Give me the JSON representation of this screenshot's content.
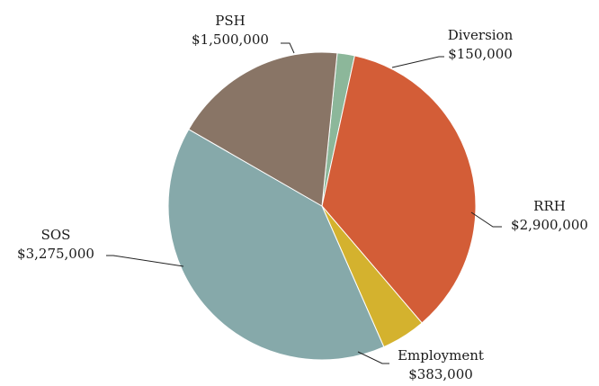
{
  "chart_data": {
    "type": "pie",
    "title": "",
    "start_category": "Diversion",
    "slices": [
      {
        "key": "diversion",
        "label": "Diversion",
        "value": 150000,
        "value_label": "$150,000",
        "color": "#8CB79A"
      },
      {
        "key": "rrh",
        "label": "RRH",
        "value": 2900000,
        "value_label": "$2,900,000",
        "color": "#D35D37"
      },
      {
        "key": "employment",
        "label": "Employment",
        "value": 383000,
        "value_label": "$383,000",
        "color": "#D4B22E"
      },
      {
        "key": "sos",
        "label": "SOS",
        "value": 3275000,
        "value_label": "$3,275,000",
        "color": "#86A9AA"
      },
      {
        "key": "psh",
        "label": "PSH",
        "value": 1500000,
        "value_label": "$1,500,000",
        "color": "#897566"
      }
    ]
  }
}
